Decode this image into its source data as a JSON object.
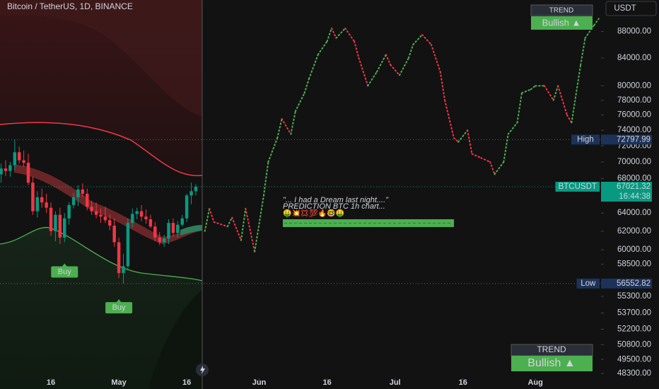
{
  "header": "Bitcoin / TetherUS, 1D, BINANCE",
  "currency_button": "USDT",
  "trend_panels": [
    {
      "title": "TREND",
      "state": "Bullish ▲"
    },
    {
      "title": "TREND",
      "state": "Bullish ▲"
    }
  ],
  "annotation": {
    "lines": [
      "\"... I had a Dream last night....\"",
      "PREDICTION BTC 1h chart...",
      "🤑💥💢💯🔥🤓🤑"
    ]
  },
  "chart_data": {
    "type": "candlestick",
    "log_scale": true,
    "xlim": [
      3.75,
      136.5
    ],
    "ylim": [
      47000,
      93000
    ],
    "xticks": [
      {
        "value": 15,
        "label": "16"
      },
      {
        "value": 30,
        "label": "May"
      },
      {
        "value": 45,
        "label": "16"
      },
      {
        "value": 61,
        "label": "Jun"
      },
      {
        "value": 76,
        "label": "16"
      },
      {
        "value": 91,
        "label": "Jul"
      },
      {
        "value": 106,
        "label": "16"
      },
      {
        "value": 122,
        "label": "Aug"
      }
    ],
    "yticks": [
      {
        "value": 88000,
        "label": "88000.00"
      },
      {
        "value": 84000,
        "label": "84000.00"
      },
      {
        "value": 80000,
        "label": "80000.00"
      },
      {
        "value": 78000,
        "label": "78000.00"
      },
      {
        "value": 76000,
        "label": "76000.00"
      },
      {
        "value": 74000,
        "label": "74000.00"
      },
      {
        "value": 72000,
        "label": "72000.00"
      },
      {
        "value": 70000,
        "label": "70000.00"
      },
      {
        "value": 68000,
        "label": "68000.00"
      },
      {
        "value": 64000,
        "label": "64000.00"
      },
      {
        "value": 62000,
        "label": "62000.00"
      },
      {
        "value": 60000,
        "label": "60000.00"
      },
      {
        "value": 58500,
        "label": "58500.00"
      },
      {
        "value": 55300,
        "label": "55300.00"
      },
      {
        "value": 53700,
        "label": "53700.00"
      },
      {
        "value": 52200,
        "label": "52200.00"
      },
      {
        "value": 50800,
        "label": "50800.00"
      },
      {
        "value": 49500,
        "label": "49500.00"
      },
      {
        "value": 48300,
        "label": "48300.00"
      }
    ],
    "up_color": "#089981",
    "down_color": "#f23645",
    "candles": {
      "x": [
        4,
        5,
        6,
        7,
        8,
        9,
        10,
        11,
        12,
        13,
        14,
        15,
        16,
        17,
        18,
        19,
        20,
        21,
        22,
        23,
        24,
        25,
        26,
        27,
        28,
        29,
        30,
        31,
        32,
        33,
        34,
        35,
        36,
        37,
        38,
        39,
        40,
        41,
        42,
        43,
        44,
        45,
        46,
        47
      ],
      "open": [
        68500,
        69200,
        68900,
        69600,
        71200,
        70200,
        69900,
        67500,
        64200,
        65800,
        65200,
        64600,
        62000,
        63800,
        61300,
        63400,
        64900,
        65800,
        66700,
        66200,
        64700,
        64200,
        63800,
        63600,
        63200,
        62600,
        60800,
        57600,
        58300,
        62900,
        63900,
        64200,
        63600,
        63300,
        62500,
        61300,
        60800,
        61200,
        62900,
        61800,
        62700,
        63400,
        66000,
        66500
      ],
      "high": [
        69800,
        70200,
        70000,
        72797.99,
        71900,
        71400,
        71000,
        68200,
        66500,
        66800,
        66200,
        65200,
        64200,
        64600,
        64000,
        65200,
        66300,
        67200,
        67400,
        66800,
        65400,
        65200,
        64500,
        64700,
        63800,
        63400,
        61300,
        59600,
        63400,
        64500,
        64600,
        64900,
        64400,
        63800,
        63000,
        61900,
        61600,
        63300,
        63400,
        63100,
        63800,
        66200,
        67500,
        67300
      ],
      "low": [
        67500,
        68300,
        68200,
        69000,
        69800,
        69400,
        67200,
        63800,
        63500,
        64600,
        64000,
        61500,
        60900,
        60600,
        60800,
        62700,
        64500,
        64800,
        65800,
        64300,
        63800,
        63400,
        62900,
        62900,
        62100,
        60300,
        57100,
        56552.82,
        58000,
        62400,
        63300,
        63100,
        62800,
        62300,
        60900,
        60500,
        60300,
        60600,
        61400,
        61300,
        62500,
        63000,
        65000,
        66000
      ],
      "close": [
        69200,
        68900,
        69600,
        71200,
        70200,
        69900,
        67500,
        64200,
        65800,
        65200,
        64600,
        62000,
        63800,
        61300,
        63400,
        64900,
        65800,
        66700,
        66200,
        64700,
        64200,
        63800,
        63600,
        63200,
        62600,
        60800,
        57600,
        58300,
        62900,
        63900,
        64200,
        63600,
        63300,
        62500,
        61300,
        60800,
        61200,
        62900,
        61800,
        62700,
        63400,
        66000,
        66500,
        67021.32
      ]
    },
    "projection": {
      "up_color": "#4caf50",
      "down_color": "#f23645",
      "x": [
        49,
        50,
        51,
        54,
        55,
        57,
        58,
        60,
        62,
        63,
        65,
        66,
        68,
        69,
        71,
        72,
        74,
        76,
        77,
        78,
        80,
        82,
        83,
        85,
        87,
        89,
        90,
        92,
        94,
        95,
        97,
        99,
        101,
        102,
        104,
        105,
        107,
        108,
        110,
        112,
        113,
        115,
        116,
        118,
        119,
        121,
        122,
        124,
        126,
        127,
        129,
        130,
        132,
        133,
        135,
        136
      ],
      "values": [
        62000,
        64500,
        63000,
        62500,
        63500,
        61000,
        64500,
        59800,
        66000,
        70000,
        73000,
        75500,
        73500,
        76500,
        79000,
        81000,
        84500,
        86500,
        88500,
        87000,
        88500,
        86500,
        84000,
        80000,
        82000,
        84500,
        83000,
        81500,
        84000,
        86000,
        87500,
        86000,
        82000,
        78000,
        73000,
        72500,
        74000,
        71000,
        70500,
        70000,
        68500,
        70000,
        73500,
        75000,
        79000,
        79500,
        80000,
        80000,
        78000,
        80000,
        76000,
        75000,
        83000,
        87000,
        89000,
        90000
      ]
    },
    "markers": [
      {
        "label": "High",
        "value": 72797.99
      },
      {
        "label": "BTCUSDT",
        "value": 67021.32,
        "time": "16:44:38"
      },
      {
        "label": "Low",
        "value": 56552.82
      }
    ],
    "signals": [
      {
        "label": "Buy",
        "x": 18
      },
      {
        "label": "Buy",
        "x": 30
      }
    ]
  }
}
